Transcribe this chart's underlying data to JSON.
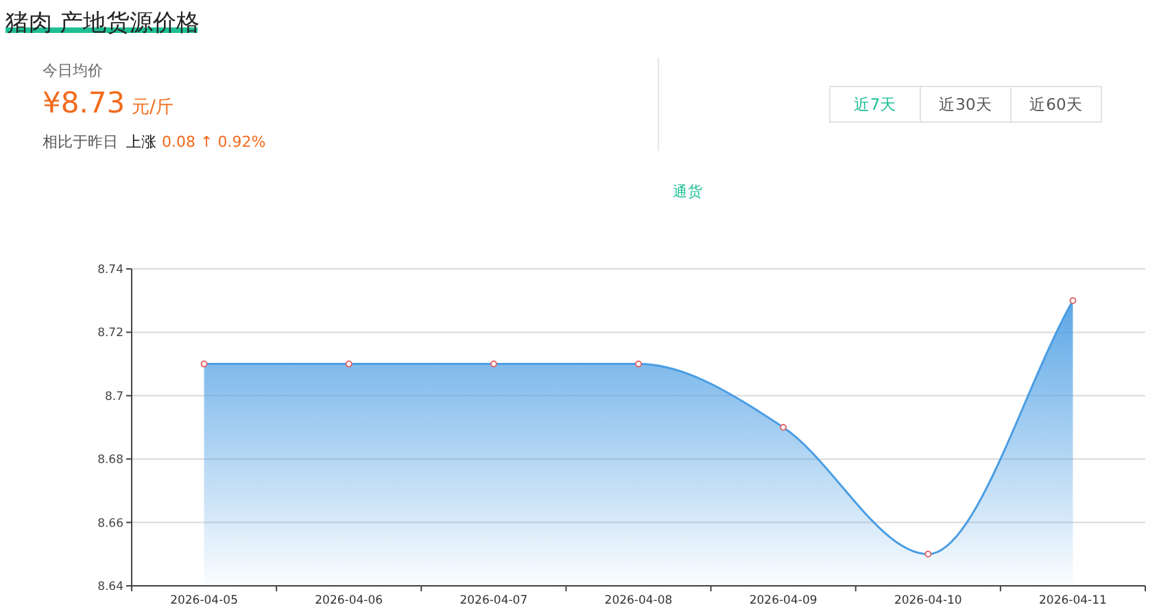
{
  "chart_data": [
    {
      "type": "other",
      "title": "猪肉 产地货源价格",
      "annotations": [
        "今日均价",
        "¥8.73",
        "元/斤",
        "相比于昨日",
        "上涨",
        "0.08 ↑ 0.92%",
        "近7天",
        "近30天",
        "近60天"
      ]
    },
    {
      "type": "area",
      "categories": [
        "2026-04-05",
        "2026-04-06",
        "2026-04-07",
        "2026-04-08",
        "2026-04-09",
        "2026-04-10",
        "2026-04-11"
      ],
      "series": [
        {
          "name": "通货",
          "color": "#4a9de3",
          "values": [
            8.71,
            8.71,
            8.71,
            8.71,
            8.69,
            8.65,
            8.73
          ]
        }
      ],
      "ylim": [
        8.64,
        8.74
      ],
      "yticks": [
        8.64,
        8.66,
        8.68,
        8.7,
        8.72,
        8.74
      ],
      "grid": "y",
      "legend": "top",
      "marker": "circle",
      "line_style": "solid"
    }
  ]
}
